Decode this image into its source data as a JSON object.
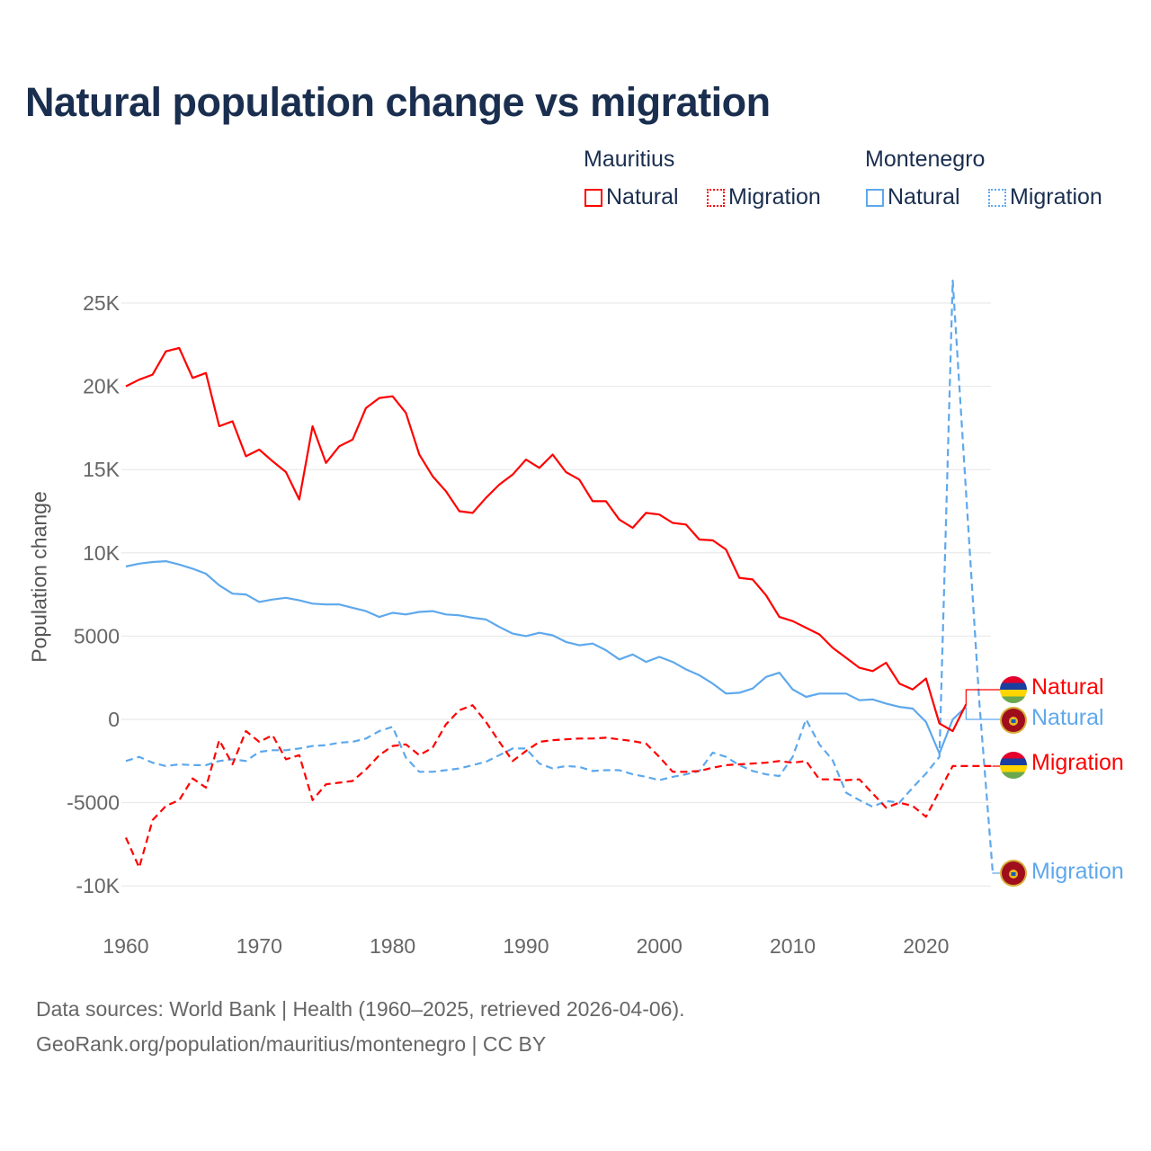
{
  "title": "Natural population change vs migration",
  "legend": {
    "groups": [
      {
        "name": "Mauritius",
        "items": [
          "Natural",
          "Migration"
        ],
        "color": "#ff0000"
      },
      {
        "name": "Montenegro",
        "items": [
          "Natural",
          "Migration"
        ],
        "color": "#5ea8ec"
      }
    ]
  },
  "end_labels": {
    "mauritius_natural": "Natural",
    "montenegro_natural": "Natural",
    "mauritius_migration": "Migration",
    "montenegro_migration": "Migration"
  },
  "footer": {
    "line1": "Data sources: World Bank | Health (1960–2025, retrieved 2026-04-06).",
    "line2": "GeoRank.org/population/mauritius/montenegro | CC BY"
  },
  "chart_data": {
    "type": "line",
    "title": "Natural population change vs migration",
    "xlabel": "",
    "ylabel": "Population change",
    "xlim": [
      1960,
      2025
    ],
    "ylim": [
      -10000,
      25000
    ],
    "x_ticks": [
      "1960",
      "1970",
      "1980",
      "1990",
      "2000",
      "2010",
      "2020"
    ],
    "y_ticks": [
      {
        "value": 25000,
        "label": "25K"
      },
      {
        "value": 20000,
        "label": "20K"
      },
      {
        "value": 15000,
        "label": "15K"
      },
      {
        "value": 10000,
        "label": "10K"
      },
      {
        "value": 5000,
        "label": "5000"
      },
      {
        "value": 0,
        "label": "0"
      },
      {
        "value": -5000,
        "label": "-5000"
      },
      {
        "value": -10000,
        "label": "-10K"
      }
    ],
    "grid": true,
    "legend_position": "top-right",
    "start_year": 1960,
    "series": [
      {
        "name": "Mauritius Natural",
        "color": "#ff0000",
        "dash": false,
        "values": [
          20000,
          20400,
          20700,
          22100,
          22300,
          20500,
          20800,
          17600,
          17900,
          15800,
          16200,
          15500,
          14850,
          13200,
          17600,
          15400,
          16400,
          16800,
          18700,
          19300,
          19400,
          18400,
          15900,
          14600,
          13700,
          12500,
          12400,
          13300,
          14100,
          14700,
          15600,
          15100,
          15900,
          14850,
          14400,
          13100,
          13100,
          12000,
          11500,
          12400,
          12300,
          11800,
          11700,
          10800,
          10750,
          10200,
          8500,
          8400,
          7450,
          6150,
          5900,
          5500,
          5100,
          4300,
          3700,
          3100,
          2900,
          3400,
          2150,
          1800,
          2450,
          -250,
          -700,
          900
        ]
      },
      {
        "name": "Mauritius Migration",
        "color": "#ff0000",
        "dash": true,
        "values": [
          -7100,
          -8900,
          -6050,
          -5200,
          -4850,
          -3550,
          -4100,
          -1250,
          -2700,
          -700,
          -1350,
          -950,
          -2400,
          -2150,
          -4850,
          -3900,
          -3800,
          -3700,
          -3000,
          -2150,
          -1600,
          -1500,
          -2150,
          -1700,
          -300,
          550,
          850,
          -150,
          -1350,
          -2500,
          -1900,
          -1350,
          -1250,
          -1200,
          -1150,
          -1150,
          -1100,
          -1200,
          -1300,
          -1450,
          -2250,
          -3150,
          -3150,
          -3100,
          -2900,
          -2750,
          -2700,
          -2650,
          -2600,
          -2500,
          -2600,
          -2500,
          -3600,
          -3600,
          -3650,
          -3600,
          -4450,
          -5300,
          -5000,
          -5200,
          -5850,
          -4300,
          -2800,
          -2800,
          -2800,
          -2800
        ]
      },
      {
        "name": "Montenegro Natural",
        "color": "#5ea8ec",
        "dash": false,
        "values": [
          9180,
          9350,
          9450,
          9500,
          9300,
          9050,
          8750,
          8050,
          7550,
          7500,
          7050,
          7200,
          7300,
          7150,
          6950,
          6900,
          6900,
          6700,
          6500,
          6150,
          6400,
          6300,
          6450,
          6500,
          6300,
          6250,
          6100,
          6000,
          5550,
          5150,
          5000,
          5200,
          5050,
          4650,
          4450,
          4550,
          4150,
          3600,
          3900,
          3450,
          3750,
          3450,
          3000,
          2650,
          2150,
          1550,
          1600,
          1850,
          2550,
          2800,
          1800,
          1350,
          1550,
          1550,
          1550,
          1150,
          1200,
          950,
          750,
          650,
          -150,
          -2050,
          0,
          750
        ]
      },
      {
        "name": "Montenegro Migration",
        "color": "#5ea8ec",
        "dash": true,
        "values": [
          -2500,
          -2250,
          -2600,
          -2800,
          -2700,
          -2750,
          -2750,
          -2500,
          -2400,
          -2500,
          -1950,
          -1850,
          -1850,
          -1750,
          -1600,
          -1550,
          -1400,
          -1350,
          -1150,
          -700,
          -450,
          -2300,
          -3150,
          -3150,
          -3050,
          -2950,
          -2750,
          -2550,
          -2150,
          -1750,
          -1750,
          -2650,
          -2950,
          -2800,
          -2850,
          -3100,
          -3050,
          -3050,
          -3300,
          -3450,
          -3650,
          -3450,
          -3300,
          -3100,
          -2000,
          -2250,
          -2750,
          -3100,
          -3300,
          -3400,
          -2250,
          0,
          -1500,
          -2450,
          -4400,
          -4850,
          -5250,
          -4900,
          -5000,
          -4100,
          -3250,
          -2250,
          26350,
          13650,
          950,
          -9200
        ]
      }
    ]
  }
}
